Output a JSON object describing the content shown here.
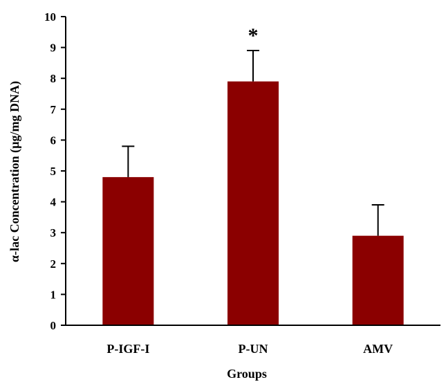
{
  "chart_data": {
    "type": "bar",
    "title": "",
    "xlabel": "Groups",
    "ylabel": "α-lac Concentration (µg/mg DNA)",
    "categories": [
      "P-IGF-I",
      "P-UN",
      "AMV"
    ],
    "series": [
      {
        "values": [
          4.8,
          7.9,
          2.9
        ],
        "error": [
          1.0,
          1.0,
          1.0
        ]
      }
    ],
    "ylim": [
      0,
      10
    ],
    "yticks": [
      "0",
      "1",
      "2",
      "3",
      "4",
      "5",
      "6",
      "7",
      "8",
      "9",
      "10"
    ],
    "annotations": [
      {
        "category": "P-UN",
        "text": "*"
      }
    ],
    "grid": false,
    "legend": "none",
    "colors": {
      "bar": "#8b0000",
      "axis": "#000000",
      "errorbar": "#000000"
    }
  }
}
